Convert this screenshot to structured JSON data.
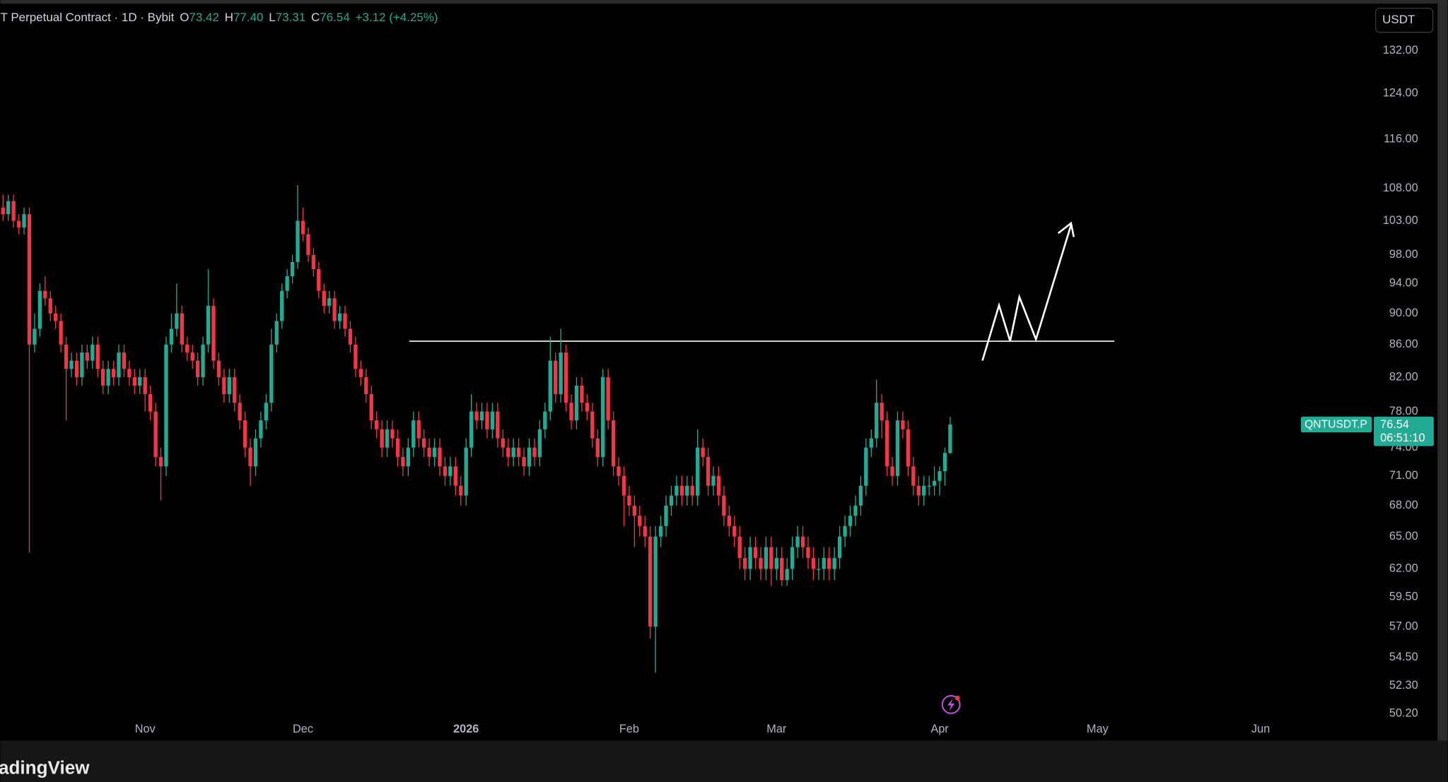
{
  "header": {
    "symbol_text": "T Perpetual Contract · 1D · Bybit",
    "ohlc": [
      {
        "key": "O",
        "value": "73.42"
      },
      {
        "key": "H",
        "value": "77.40"
      },
      {
        "key": "L",
        "value": "73.31"
      },
      {
        "key": "C",
        "value": "76.54"
      }
    ],
    "change": "+3.12 (+4.25%)"
  },
  "currency": "USDT",
  "price_tag": {
    "symbol": "QNTUSDT.P",
    "price": "76.54",
    "countdown": "06:51:10"
  },
  "brand": "adingView",
  "chart_data": {
    "type": "candlestick",
    "up_color": "#22ab94",
    "down_color": "#f23645",
    "log_scale": true,
    "xlim": [
      -0.5,
      260.5
    ],
    "ylim": [
      50.2,
      140.6
    ],
    "xticks": [
      {
        "value": 27,
        "label": "Nov"
      },
      {
        "value": 57,
        "label": "Dec"
      },
      {
        "value": 88,
        "label": "2026"
      },
      {
        "value": 119,
        "label": "Feb"
      },
      {
        "value": 147,
        "label": "Mar"
      },
      {
        "value": 178,
        "label": "Apr"
      },
      {
        "value": 208,
        "label": "May"
      },
      {
        "value": 239,
        "label": "Jun"
      }
    ],
    "yticks": [
      {
        "value": 132,
        "label": "132.00"
      },
      {
        "value": 124,
        "label": "124.00"
      },
      {
        "value": 116,
        "label": "116.00"
      },
      {
        "value": 108,
        "label": "108.00"
      },
      {
        "value": 103,
        "label": "103.00"
      },
      {
        "value": 98,
        "label": "98.00"
      },
      {
        "value": 94,
        "label": "94.00"
      },
      {
        "value": 90,
        "label": "90.00"
      },
      {
        "value": 86,
        "label": "86.00"
      },
      {
        "value": 82,
        "label": "82.00"
      },
      {
        "value": 78,
        "label": "78.00"
      },
      {
        "value": 74,
        "label": "74.00"
      },
      {
        "value": 71,
        "label": "71.00"
      },
      {
        "value": 68,
        "label": "68.00"
      },
      {
        "value": 65,
        "label": "65.00"
      },
      {
        "value": 62,
        "label": "62.00"
      },
      {
        "value": 59.5,
        "label": "59.50"
      },
      {
        "value": 57,
        "label": "57.00"
      },
      {
        "value": 54.5,
        "label": "54.50"
      },
      {
        "value": 52.3,
        "label": "52.30"
      },
      {
        "value": 50.2,
        "label": "50.20"
      }
    ],
    "open": [
      105,
      104,
      106,
      103,
      102,
      104,
      86,
      88,
      93,
      92,
      90,
      89,
      86,
      83,
      84,
      82,
      85,
      84,
      86,
      83,
      81,
      83,
      82,
      85,
      83,
      82,
      81,
      82,
      80,
      78,
      73,
      72,
      86,
      88,
      90,
      86,
      85,
      84,
      82,
      86,
      91,
      84,
      82,
      80,
      82,
      79,
      77,
      74,
      72,
      75,
      77,
      79,
      86,
      89,
      93,
      95,
      97,
      103,
      101,
      98,
      96,
      93,
      91,
      92,
      89,
      90,
      88,
      86,
      83,
      82,
      80,
      77,
      76,
      74,
      76,
      75,
      73,
      72,
      74,
      77,
      75,
      74,
      73,
      74,
      72,
      71,
      72,
      70,
      69,
      74,
      78,
      77,
      78,
      76,
      78,
      75,
      74,
      73,
      74,
      73,
      72,
      74,
      73,
      76,
      78,
      84,
      80,
      85,
      79,
      77,
      81,
      79,
      78,
      75,
      73,
      82,
      77,
      72,
      71,
      69,
      68,
      67,
      66,
      65,
      57,
      65,
      66,
      68,
      69,
      70,
      69,
      70,
      69,
      74,
      73,
      70,
      71,
      69,
      67,
      66,
      65,
      63,
      62,
      64,
      63,
      62,
      64,
      62,
      63,
      61,
      62,
      64,
      65,
      64,
      63,
      62,
      62,
      63,
      62,
      63,
      65,
      66,
      67,
      68,
      70,
      74,
      75,
      79,
      77,
      72,
      71,
      77,
      76,
      72,
      70,
      69,
      70,
      70,
      70.5,
      71.5,
      73.42
    ],
    "high": [
      107,
      107,
      107,
      104,
      105,
      105,
      90,
      94,
      95,
      93,
      91,
      90,
      87,
      85,
      85,
      86,
      86,
      87,
      87,
      84,
      84,
      84,
      86,
      86,
      84,
      83,
      83,
      83,
      81,
      79,
      74,
      87,
      90,
      94,
      91,
      87,
      86,
      85,
      87,
      96,
      92,
      85,
      83,
      83,
      83,
      80,
      78,
      75,
      76,
      78,
      80,
      88,
      90,
      94,
      96,
      98,
      108.5,
      105,
      102,
      99,
      97,
      94,
      93,
      93,
      91,
      91,
      89,
      87,
      84,
      83,
      81,
      78,
      77,
      77,
      77,
      76,
      74,
      75,
      78,
      78,
      76,
      75,
      75,
      75,
      73,
      73,
      73,
      71,
      75,
      80,
      79,
      79,
      79,
      79,
      79,
      76,
      75,
      75,
      75,
      74,
      75,
      75,
      77,
      79,
      87,
      85,
      88,
      86,
      80,
      82,
      82,
      80,
      79,
      76,
      83,
      83,
      78,
      73,
      72,
      70,
      69,
      68,
      67,
      66,
      66,
      67,
      69,
      70,
      71,
      71,
      71,
      71,
      76,
      75,
      74,
      72,
      72,
      70,
      68,
      67,
      66,
      64,
      65,
      65,
      64,
      65,
      65,
      64,
      64,
      63,
      65,
      66,
      66,
      65,
      64,
      63,
      64,
      64,
      64,
      66,
      67,
      68,
      69,
      71,
      75,
      76,
      81.7,
      80,
      78,
      73,
      78,
      78,
      77,
      73,
      71,
      71,
      71,
      72,
      72,
      74,
      77.4
    ],
    "low": [
      103,
      103,
      102,
      101,
      101,
      63.5,
      85,
      87,
      91,
      89,
      88,
      85,
      77,
      82,
      81,
      81,
      83,
      83,
      82,
      80,
      80,
      81,
      81,
      82,
      81,
      80,
      80,
      78,
      77,
      72,
      68.5,
      71,
      85,
      87,
      85,
      84,
      83,
      81,
      81,
      85,
      83,
      81,
      79,
      79,
      78,
      76,
      73,
      70,
      71,
      74,
      76,
      78,
      85,
      88,
      92,
      94,
      96,
      100,
      97,
      95,
      92,
      90,
      90,
      88,
      88,
      87,
      85,
      82,
      81,
      79,
      76,
      75,
      73,
      73,
      74,
      72,
      71,
      71,
      73,
      74,
      73,
      72,
      72,
      71,
      70,
      70,
      69,
      68,
      68,
      73,
      76,
      76,
      75,
      75,
      74,
      73,
      72,
      72,
      72,
      71,
      71,
      72,
      72,
      75,
      77,
      79,
      79,
      78,
      76,
      76,
      78,
      77,
      74,
      72,
      72,
      76,
      71,
      70,
      66,
      67,
      64,
      65,
      64,
      56,
      53.3,
      64,
      65,
      67,
      68,
      68,
      68,
      68,
      68,
      72,
      69,
      69,
      68,
      66,
      65,
      64,
      62,
      61,
      61,
      62,
      61,
      61,
      60.5,
      61,
      60.5,
      60.5,
      61,
      63,
      63,
      62,
      61,
      61,
      61,
      61,
      61,
      62,
      64,
      65,
      66,
      67,
      69,
      73,
      74,
      75,
      71,
      70,
      70,
      75,
      71,
      69,
      68,
      68,
      69,
      69,
      69,
      70,
      73.31
    ],
    "close": [
      104,
      106,
      103,
      102,
      104,
      86,
      88,
      93,
      92,
      90,
      89,
      86,
      83,
      84,
      82,
      85,
      84,
      86,
      83,
      81,
      83,
      82,
      85,
      83,
      82,
      81,
      82,
      80,
      78,
      73,
      72,
      86,
      88,
      90,
      86,
      85,
      84,
      82,
      86,
      91,
      84,
      82,
      80,
      82,
      79,
      77,
      74,
      72,
      75,
      77,
      79,
      86,
      89,
      93,
      95,
      97,
      103,
      101,
      98,
      96,
      93,
      91,
      92,
      89,
      90,
      88,
      86,
      83,
      82,
      80,
      77,
      76,
      74,
      76,
      75,
      73,
      72,
      74,
      77,
      75,
      74,
      73,
      74,
      72,
      71,
      72,
      70,
      69,
      74,
      78,
      77,
      78,
      76,
      78,
      75,
      74,
      73,
      74,
      73,
      72,
      74,
      73,
      76,
      78,
      84,
      80,
      85,
      79,
      77,
      81,
      79,
      78,
      75,
      73,
      82,
      77,
      72,
      71,
      69,
      68,
      67,
      66,
      65,
      57,
      65,
      66,
      68,
      69,
      70,
      69,
      70,
      69,
      74,
      73,
      70,
      71,
      69,
      67,
      66,
      65,
      63,
      62,
      64,
      63,
      62,
      64,
      62,
      63,
      61,
      62,
      64,
      65,
      64,
      63,
      62,
      62,
      63,
      62,
      63,
      65,
      66,
      67,
      68,
      70,
      74,
      75,
      79,
      77,
      72,
      71,
      77,
      76,
      72,
      70,
      69,
      70,
      70,
      70.5,
      71.5,
      73.42,
      76.54
    ]
  }
}
